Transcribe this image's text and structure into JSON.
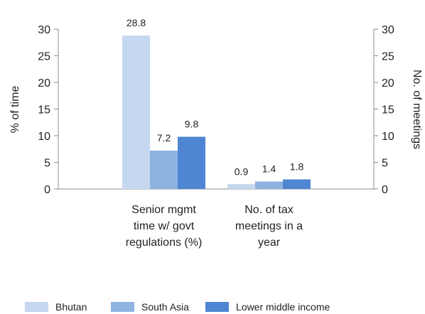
{
  "chart_data": {
    "type": "bar",
    "categories": [
      [
        "Senior mgmt",
        "time w/ govt",
        "regulations (%)"
      ],
      [
        "No. of tax",
        "meetings in a",
        "year"
      ]
    ],
    "series": [
      {
        "name": "Bhutan",
        "color": "#c5d8ef",
        "values": [
          28.8,
          0.9
        ]
      },
      {
        "name": "South Asia",
        "color": "#8eb3e2",
        "values": [
          7.2,
          1.4
        ]
      },
      {
        "name": "Lower middle income",
        "color": "#4f86d3",
        "values": [
          9.8,
          1.8
        ]
      }
    ],
    "ylabel_left": "% of time",
    "ylabel_right": "No. of meetings",
    "ylim": [
      0,
      30
    ],
    "yticks": [
      "0",
      "5",
      "10",
      "15",
      "20",
      "25",
      "30"
    ],
    "data_labels": [
      [
        "28.8",
        "0.9"
      ],
      [
        "7.2",
        "1.4"
      ],
      [
        "9.8",
        "1.8"
      ]
    ],
    "legend_position": "bottom",
    "grid": false
  }
}
